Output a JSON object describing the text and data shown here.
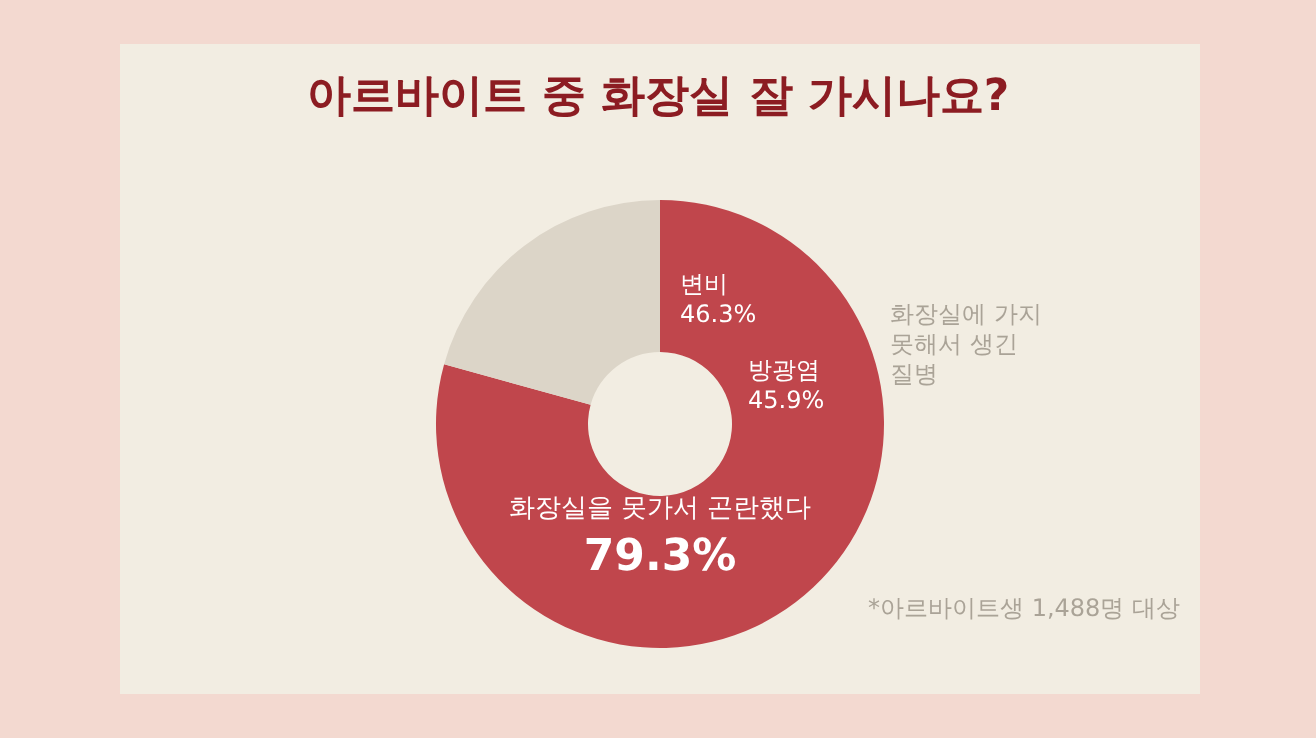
{
  "chart_data": {
    "type": "donut",
    "title": "아르바이트 중 화장실 잘 가시나요?",
    "categories": [
      "화장실을 못가서 곤란했다",
      null
    ],
    "values": [
      79.3,
      20.7
    ],
    "colors": [
      "#c0464c",
      "#dcd5c8"
    ],
    "value_labels": [
      "79.3%",
      null
    ],
    "annotations": [
      "변비 46.3%",
      "방광염 45.9%",
      "화장실에 가지 못해서 생긴 질병",
      "*아르바이트생 1,488명 대상"
    ],
    "legend": false
  }
}
